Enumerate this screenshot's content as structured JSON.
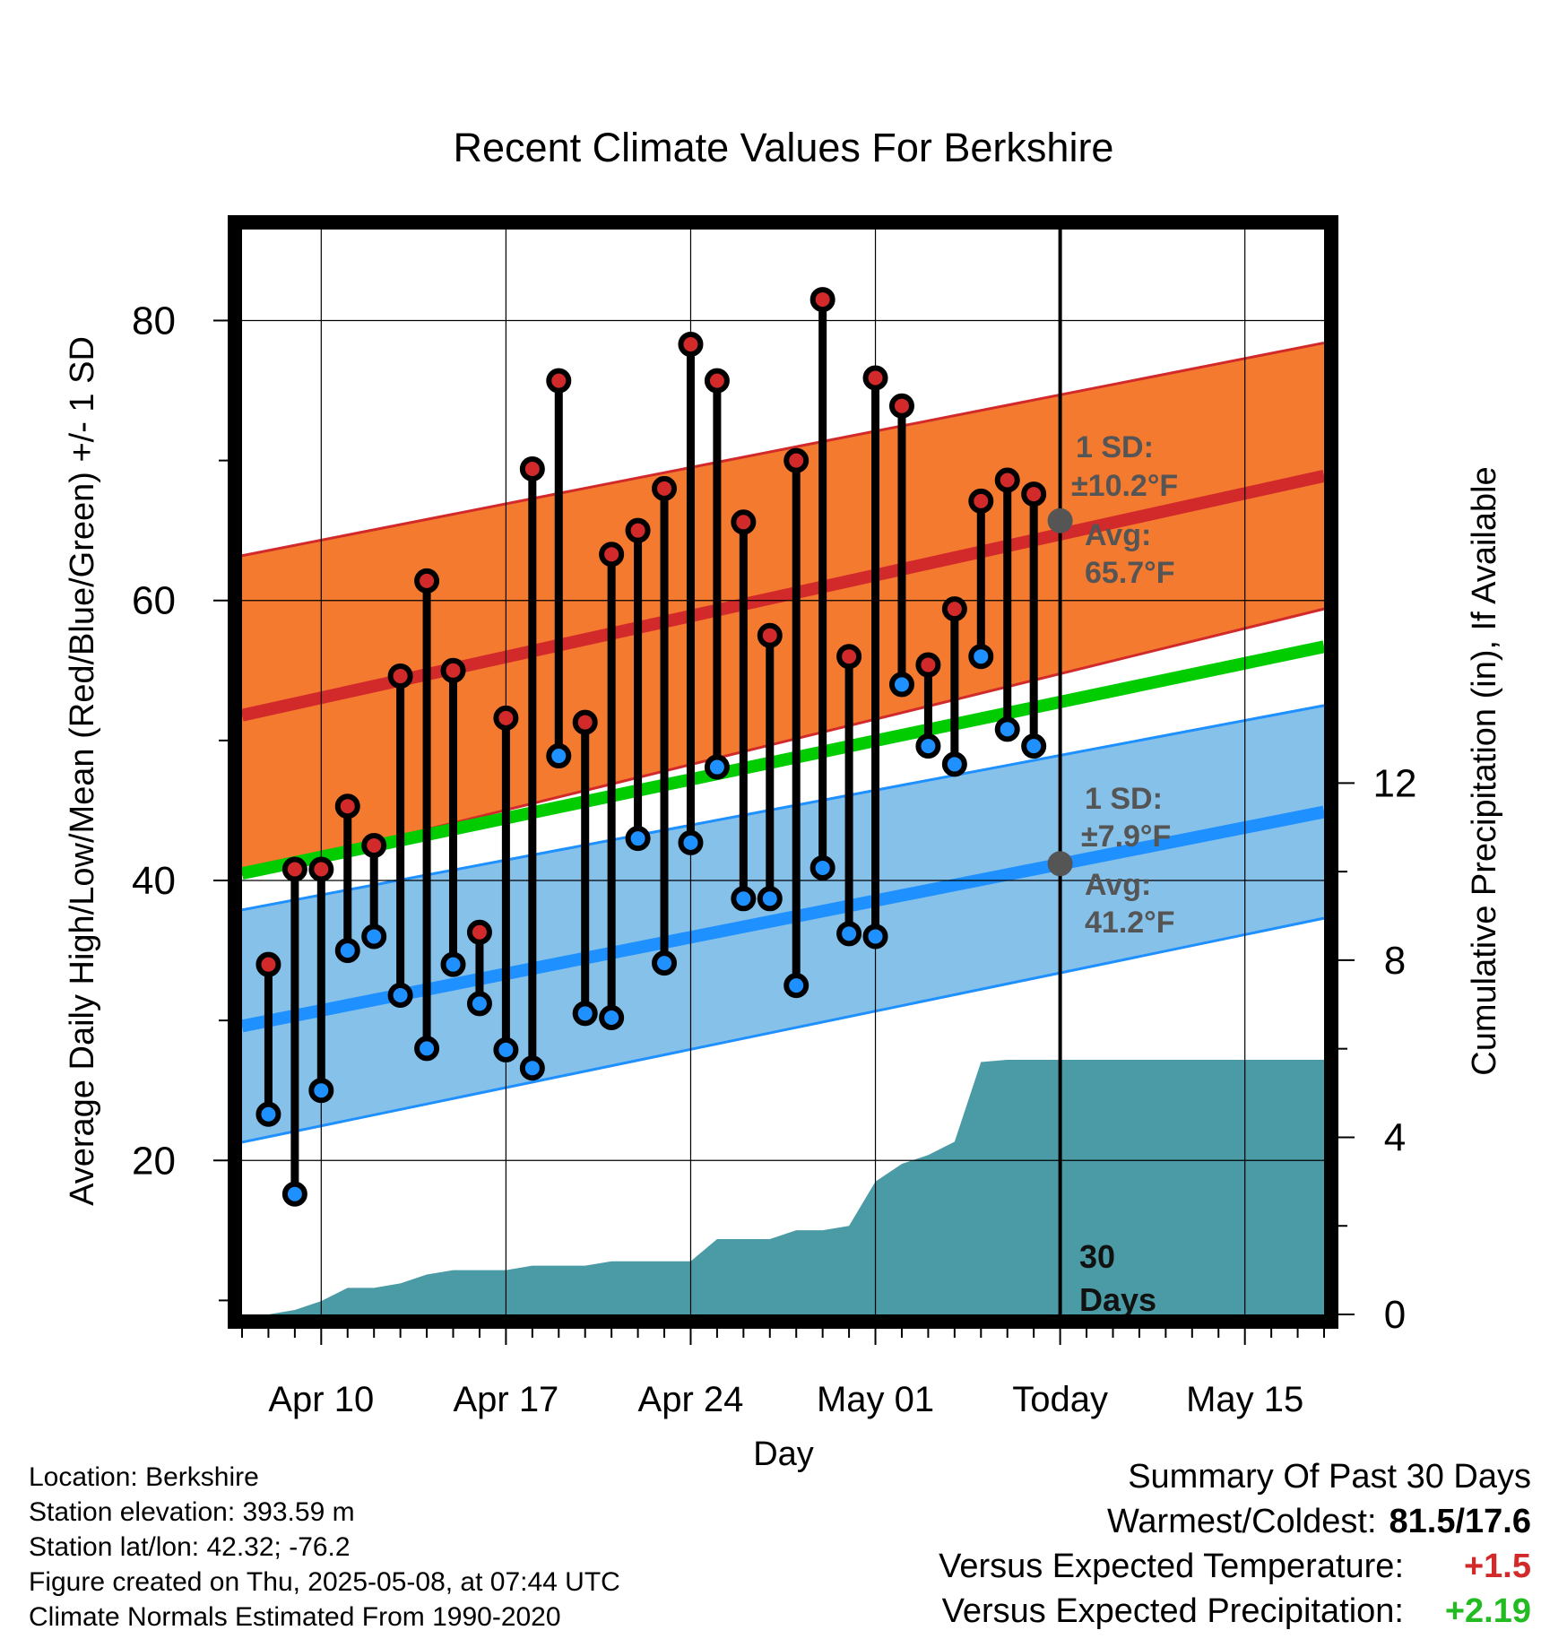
{
  "chart_data": {
    "type": "line",
    "title": "Recent Climate Values For Berkshire",
    "xlabel": "Day",
    "ylabel": "Average Daily High/Low/Mean (Red/Blue/Green) +/- 1 SD",
    "y2label": "Cumulative Precipitation (in), If Available",
    "ylim": [
      9,
      86.5
    ],
    "y2lim": [
      0,
      24.5
    ],
    "yticks": [
      20,
      40,
      60,
      80
    ],
    "y2ticks": [
      0,
      4,
      8,
      12
    ],
    "xlim": [
      "2025-04-07",
      "2025-05-18"
    ],
    "xticks": [
      {
        "date": "2025-04-10",
        "label": "Apr 10"
      },
      {
        "date": "2025-04-17",
        "label": "Apr 17"
      },
      {
        "date": "2025-04-24",
        "label": "Apr 24"
      },
      {
        "date": "2025-05-01",
        "label": "May 01"
      },
      {
        "date": "2025-05-08",
        "label": "Today"
      },
      {
        "date": "2025-05-15",
        "label": "May 15"
      }
    ],
    "today": "2025-05-08",
    "dates": [
      "2025-04-08",
      "2025-04-09",
      "2025-04-10",
      "2025-04-11",
      "2025-04-12",
      "2025-04-13",
      "2025-04-14",
      "2025-04-15",
      "2025-04-16",
      "2025-04-17",
      "2025-04-18",
      "2025-04-19",
      "2025-04-20",
      "2025-04-21",
      "2025-04-22",
      "2025-04-23",
      "2025-04-24",
      "2025-04-25",
      "2025-04-26",
      "2025-04-27",
      "2025-04-28",
      "2025-04-29",
      "2025-04-30",
      "2025-05-01",
      "2025-05-02",
      "2025-05-03",
      "2025-05-04",
      "2025-05-05",
      "2025-05-06",
      "2025-05-07"
    ],
    "highs": [
      34.0,
      40.8,
      40.8,
      45.3,
      42.5,
      54.6,
      61.4,
      55.0,
      36.3,
      51.6,
      69.4,
      75.7,
      51.3,
      63.3,
      65.0,
      68.0,
      78.3,
      75.7,
      65.6,
      57.5,
      70.0,
      81.5,
      56.0,
      75.9,
      73.9,
      55.4,
      59.4,
      67.1,
      68.6,
      67.6
    ],
    "lows": [
      23.3,
      17.6,
      25.0,
      35.0,
      36.0,
      31.8,
      28.0,
      34.0,
      31.2,
      27.9,
      26.6,
      48.9,
      30.5,
      30.2,
      43.0,
      34.1,
      42.7,
      48.1,
      38.7,
      38.7,
      32.5,
      40.9,
      36.2,
      36.0,
      54.0,
      49.6,
      48.3,
      56.0,
      50.8,
      49.6
    ],
    "series": [
      {
        "name": "",
        "color": "#d22a2a",
        "start": 51.8,
        "end": 68.9,
        "sd_start": 11.4,
        "sd_end": 9.5
      },
      {
        "name": "",
        "color": "#00cc00",
        "start": 40.5,
        "end": 56.7
      },
      {
        "name": "",
        "color": "#1e90ff",
        "start": 29.6,
        "end": 44.9,
        "sd_start": 8.3,
        "sd_end": 7.6
      }
    ],
    "annotations": {
      "high": {
        "sd_label": "1 SD:",
        "sd_value": "±10.2°F",
        "avg_label": "Avg:",
        "avg_value": "65.7°F",
        "avg": 65.7
      },
      "low": {
        "sd_label": "1 SD:",
        "sd_value": "±7.9°F",
        "avg_label": "Avg:",
        "avg_value": "41.2°F",
        "avg": 41.2
      },
      "days_line1": "30",
      "days_line2": "Days"
    },
    "precip_cumulative": [
      0,
      0.1,
      0.3,
      0.6,
      0.6,
      0.7,
      0.9,
      1.0,
      1.0,
      1.0,
      1.1,
      1.1,
      1.1,
      1.2,
      1.2,
      1.2,
      1.2,
      1.7,
      1.7,
      1.7,
      1.9,
      1.9,
      2.0,
      3.0,
      3.4,
      3.6,
      3.9,
      5.7,
      5.75,
      5.75
    ],
    "precip_final": 5.75,
    "precip_color": "#4a9ba5",
    "colors": {
      "high": "#d22a2a",
      "low": "#1e90ff",
      "mean": "#00cc00",
      "high_band": "#f47a30",
      "low_band": "#86c1ea",
      "annotation": "#555555"
    },
    "grid": true
  },
  "info": [
    "Location: Berkshire",
    "Station elevation: 393.59 m",
    "Station lat/lon: 42.32; -76.2",
    "Figure created on Thu, 2025-05-08, at 07:44 UTC",
    "Climate Normals Estimated From 1990-2020"
  ],
  "summary": {
    "heading": "Summary Of Past 30 Days",
    "warm_cold_label": "Warmest/Coldest:",
    "warm_cold_value": "81.5/17.6",
    "temp_label": "Versus Expected Temperature:",
    "temp_value": "+1.5",
    "temp_color": "#d22a2a",
    "precip_label": "Versus Expected Precipitation:",
    "precip_value": "+2.19",
    "precip_color": "#22bb22"
  }
}
